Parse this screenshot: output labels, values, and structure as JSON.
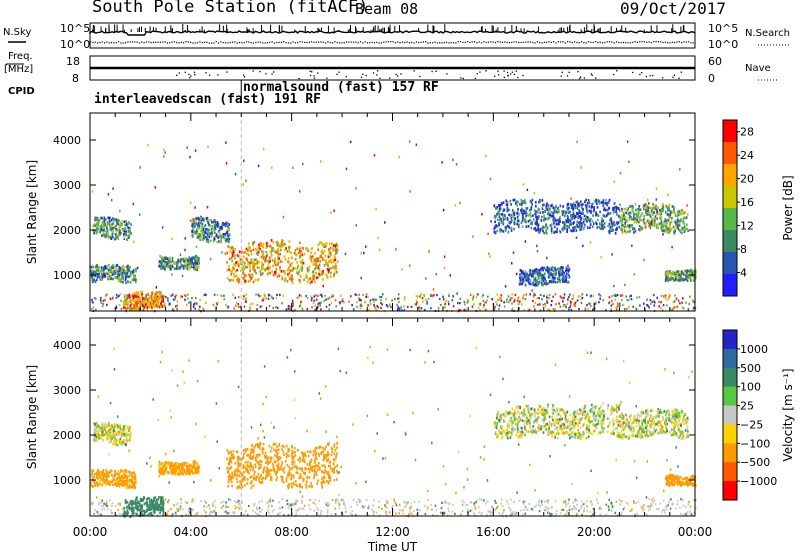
{
  "header": {
    "title": "South Pole Station (fitACF)",
    "beam": "Beam 08",
    "date": "09/Oct/2017"
  },
  "side_labels": {
    "nsky": "N.Sky",
    "freq_line1": "Freq.",
    "freq_line2": "[MHz]",
    "cpid": "CPID",
    "nsearch": "N.Search",
    "nave": "Nave"
  },
  "cpid_segments": [
    {
      "label": "interleavedscan (fast)  191 RF",
      "start_hour": 0
    },
    {
      "label": "normalsound (fast)  157 RF",
      "start_hour": 6.0
    }
  ],
  "chart_data": [
    {
      "type": "line",
      "name": "noise",
      "yticks_left": [
        "10^5",
        "10^0"
      ],
      "yticks_right": [
        "10^5",
        "10^0"
      ]
    },
    {
      "type": "line",
      "name": "frequency",
      "yticks_left": [
        "18",
        "8"
      ],
      "yticks_right": [
        "60",
        "0"
      ]
    },
    {
      "type": "heatmap",
      "name": "power",
      "ylabel": "Slant Range [km]",
      "yticks": [
        "1000",
        "2000",
        "3000",
        "4000"
      ],
      "ylim": [
        200,
        4600
      ],
      "xlim": [
        0,
        24
      ],
      "colorbar_label": "Power [dB]",
      "colorbar_ticks": [
        "4",
        "8",
        "12",
        "16",
        "20",
        "24",
        "28"
      ],
      "colorbar_range": [
        0,
        30
      ],
      "colors": [
        "#2020ff",
        "#2855b0",
        "#3a8a64",
        "#58b84a",
        "#c8c800",
        "#ffa500",
        "#ff5a00",
        "#ff0000"
      ],
      "echo_regions": [
        {
          "t0": 0.0,
          "t1": 1.8,
          "r0": 850,
          "r1": 1250,
          "level": 10
        },
        {
          "t0": 0.1,
          "t1": 1.6,
          "r0": 1800,
          "r1": 2300,
          "level": 10
        },
        {
          "t0": 1.3,
          "t1": 2.9,
          "r0": 250,
          "r1": 650,
          "level": 22
        },
        {
          "t0": 2.7,
          "t1": 4.3,
          "r0": 1150,
          "r1": 1450,
          "level": 10
        },
        {
          "t0": 5.4,
          "t1": 9.8,
          "r0": 850,
          "r1": 1800,
          "level": 20
        },
        {
          "t0": 4.0,
          "t1": 5.5,
          "r0": 1750,
          "r1": 2300,
          "level": 9
        },
        {
          "t0": 16.0,
          "t1": 21.0,
          "r0": 1950,
          "r1": 2700,
          "level": 6
        },
        {
          "t0": 21.0,
          "t1": 23.7,
          "r0": 1950,
          "r1": 2600,
          "level": 12
        },
        {
          "t0": 22.8,
          "t1": 24.0,
          "r0": 900,
          "r1": 1150,
          "level": 12
        },
        {
          "t0": 17.0,
          "t1": 19.0,
          "r0": 800,
          "r1": 1200,
          "level": 6
        }
      ]
    },
    {
      "type": "heatmap",
      "name": "velocity",
      "ylabel": "Slant Range [km]",
      "xlabel": "Time UT",
      "xticks": [
        "00:00",
        "04:00",
        "08:00",
        "12:00",
        "16:00",
        "20:00",
        "00:00"
      ],
      "yticks": [
        "1000",
        "2000",
        "3000",
        "4000"
      ],
      "ylim": [
        200,
        4600
      ],
      "xlim": [
        0,
        24
      ],
      "colorbar_label": "Velocity [m s⁻¹]",
      "colorbar_ticks": [
        "1000",
        "500",
        "100",
        "25",
        "−25",
        "−100",
        "−500",
        "−1000"
      ],
      "colors": [
        "#2424c8",
        "#2d6aa0",
        "#3a8a64",
        "#58c840",
        "#c8c8c8",
        "#ffd200",
        "#ff9b00",
        "#ff5a00",
        "#ff0000"
      ],
      "echo_regions": [
        {
          "t0": 0.0,
          "t1": 1.8,
          "r0": 850,
          "r1": 1250,
          "level": -200
        },
        {
          "t0": 0.1,
          "t1": 1.6,
          "r0": 1800,
          "r1": 2300,
          "level": 0
        },
        {
          "t0": 1.3,
          "t1": 2.9,
          "r0": 200,
          "r1": 650,
          "level": 300
        },
        {
          "t0": 2.7,
          "t1": 4.3,
          "r0": 1150,
          "r1": 1450,
          "level": -200
        },
        {
          "t0": 5.4,
          "t1": 9.8,
          "r0": 850,
          "r1": 1850,
          "level": -250
        },
        {
          "t0": 16.0,
          "t1": 21.0,
          "r0": 1950,
          "r1": 2700,
          "level": 0
        },
        {
          "t0": 21.0,
          "t1": 23.7,
          "r0": 1950,
          "r1": 2600,
          "level": 0
        },
        {
          "t0": 22.8,
          "t1": 24.0,
          "r0": 900,
          "r1": 1150,
          "level": -250
        }
      ]
    }
  ]
}
